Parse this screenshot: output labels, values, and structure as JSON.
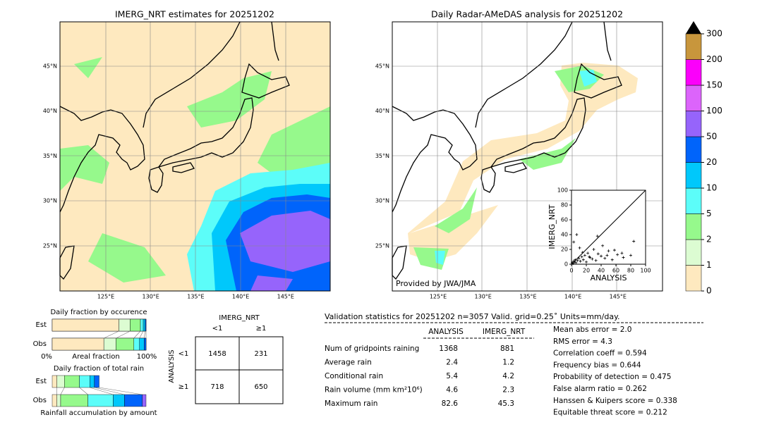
{
  "left_map": {
    "title": "IMERG_NRT estimates for 20251202",
    "lat_labels": [
      "45°N",
      "40°N",
      "35°N",
      "30°N",
      "25°N"
    ],
    "lon_labels": [
      "125°E",
      "130°E",
      "135°E",
      "140°E",
      "145°E"
    ]
  },
  "right_map": {
    "title": "Daily Radar-AMeDAS analysis for 20251202",
    "lat_labels": [
      "45°N",
      "40°N",
      "35°N",
      "30°N",
      "25°N"
    ],
    "lon_labels": [
      "125°E",
      "130°E",
      "135°E",
      "140°E",
      "145°E"
    ],
    "credit": "Provided by JWA/JMA"
  },
  "colorbar": {
    "ticks": [
      0,
      1,
      2,
      5,
      10,
      20,
      50,
      100,
      150,
      200,
      300
    ],
    "colors": [
      "#fee9bf",
      "#dcfcd2",
      "#96f98c",
      "#5cfdf9",
      "#00c8fb",
      "#0064fb",
      "#9664fb",
      "#dc64fb",
      "#fb00fb",
      "#c8963c"
    ]
  },
  "chart_data": {
    "type": "scatter",
    "xlabel": "ANALYSIS",
    "ylabel": "IMERG_NRT",
    "xlim": [
      0,
      100
    ],
    "ylim": [
      0,
      100
    ],
    "xticks": [
      0,
      20,
      40,
      60,
      80,
      100
    ],
    "yticks": [
      0,
      20,
      40,
      60,
      80,
      100
    ],
    "x": [
      1,
      2,
      3,
      4,
      5,
      6,
      8,
      10,
      12,
      14,
      16,
      18,
      20,
      22,
      25,
      28,
      30,
      33,
      36,
      40,
      45,
      50,
      55,
      62,
      70,
      80,
      3,
      7,
      11,
      15,
      24,
      35,
      42,
      48,
      58,
      68,
      84
    ],
    "y": [
      2,
      1,
      4,
      3,
      6,
      2,
      5,
      8,
      4,
      10,
      6,
      12,
      3,
      15,
      9,
      7,
      20,
      5,
      14,
      11,
      8,
      18,
      6,
      13,
      9,
      12,
      30,
      40,
      22,
      16,
      10,
      38,
      25,
      12,
      19,
      15,
      31
    ]
  },
  "occurrence": {
    "title": "Daily fraction by occurence",
    "rows": [
      "Est",
      "Obs"
    ],
    "left": "0%",
    "middle": "Areal fraction",
    "right": "100%",
    "fractions": [
      [
        0.71,
        0.12,
        0.11,
        0.03,
        0.02,
        0.01
      ],
      [
        0.55,
        0.13,
        0.19,
        0.06,
        0.05,
        0.02
      ]
    ]
  },
  "amount": {
    "title": "Daily fraction of total rain",
    "rows": [
      "Est",
      "Obs"
    ],
    "footer": "Rainfall accumulation by amount",
    "fractions": [
      [
        0.05,
        0.08,
        0.16,
        0.11,
        0.05,
        0.05
      ],
      [
        0.05,
        0.04,
        0.29,
        0.27,
        0.12,
        0.19,
        0.04
      ]
    ]
  },
  "contingency": {
    "header": "IMERG_NRT",
    "cols": [
      "<1",
      "≥1"
    ],
    "side": "ANALYSIS",
    "rows": [
      "<1",
      "≥1"
    ],
    "cells": [
      [
        1458,
        231
      ],
      [
        718,
        650
      ]
    ]
  },
  "stats": {
    "title": "Validation statistics for 20251202  n=3057 Valid. grid=0.25˚ Units=mm/day.",
    "cols": [
      "ANALYSIS",
      "IMERG_NRT"
    ],
    "rows": [
      [
        "Num of gridpoints raining",
        "1368",
        "881"
      ],
      [
        "Average rain",
        "2.4",
        "1.2"
      ],
      [
        "Conditional rain",
        "5.4",
        "4.2"
      ],
      [
        "Rain volume (mm km²10⁶)",
        "4.6",
        "2.3"
      ],
      [
        "Maximum rain",
        "82.6",
        "45.3"
      ]
    ],
    "scores": [
      "Mean abs error =    2.0",
      "RMS error =    4.3",
      "Correlation coeff =  0.594",
      "Frequency bias =  0.644",
      "Probability of detection =  0.475",
      "False alarm ratio =  0.262",
      "Hanssen & Kuipers score =  0.338",
      "Equitable threat score =  0.212"
    ]
  }
}
